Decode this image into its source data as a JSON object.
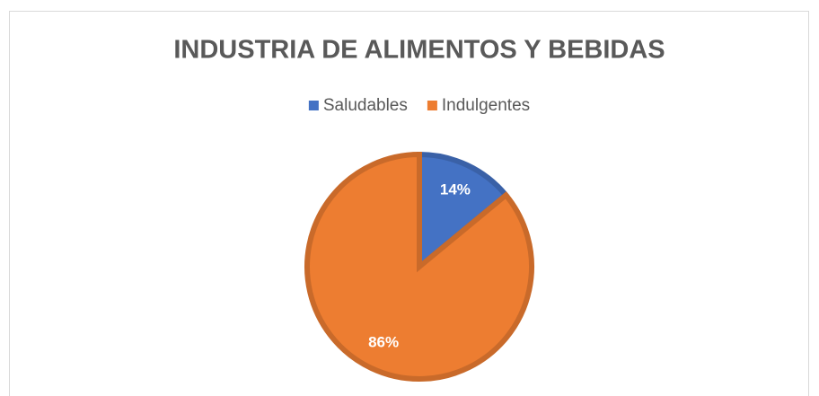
{
  "chart_data": {
    "type": "pie",
    "title": "INDUSTRIA DE ALIMENTOS Y BEBIDAS",
    "categories": [
      "Saludables",
      "Indulgentes"
    ],
    "values": [
      14,
      86
    ],
    "value_labels": [
      "14%",
      "86%"
    ],
    "colors": [
      "#4472c4",
      "#ed7d31"
    ],
    "legend": "top"
  }
}
